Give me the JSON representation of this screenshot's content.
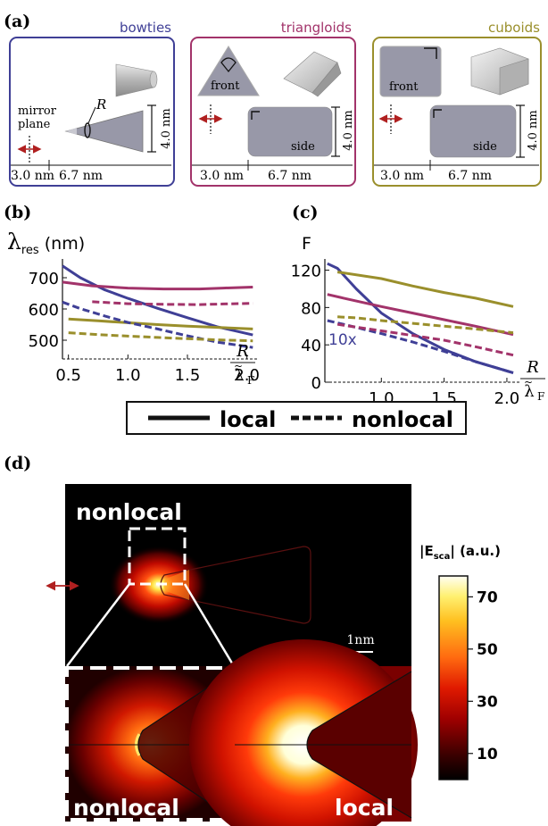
{
  "panel_labels": {
    "a": "(a)",
    "b": "(b)",
    "c": "(c)",
    "d": "(d)"
  },
  "panel_a": {
    "boxes": [
      {
        "title": "bowties",
        "color": "#3f3f96"
      },
      {
        "title": "triangloids",
        "color": "#a2336a"
      },
      {
        "title": "cuboids",
        "color": "#9a8f2c"
      }
    ],
    "mirror_label_line1": "mirror",
    "mirror_label_line2": "plane",
    "radius_label": "R",
    "front_label": "front",
    "side_label": "side",
    "height_label": "4.0 nm",
    "gap_label": "3.0 nm",
    "length_label": "6.7 nm"
  },
  "panel_b_ylabel_main": "λ",
  "panel_b_ylabel_sub": "res",
  "panel_b_ylabel_unit": " (nm)",
  "panel_c_ylabel": "F",
  "xlabel_num": "R",
  "xlabel_den": "λ",
  "xlabel_den_sub": "F",
  "annotation_10x": "10x",
  "legend": {
    "local": "local",
    "nonlocal": "nonlocal"
  },
  "panel_d": {
    "label_nonlocal_top": "nonlocal",
    "label_nonlocal_bottom": "nonlocal",
    "label_local": "local",
    "scalebar_label": "1nm",
    "colorbar_title_main": "|E",
    "colorbar_title_sub": "sca",
    "colorbar_title_end": "| (a.u.)",
    "colorbar_ticks": [
      {
        "value": 70,
        "label": "70"
      },
      {
        "value": 50,
        "label": "50"
      },
      {
        "value": 30,
        "label": "30"
      },
      {
        "value": 10,
        "label": "10"
      }
    ],
    "colorbar_range": [
      0,
      78
    ]
  },
  "chart_data": [
    {
      "type": "line",
      "xlim": [
        0.45,
        2.1
      ],
      "ylim": [
        440,
        760
      ],
      "xticks": [
        0.5,
        1.0,
        1.5,
        2.0
      ],
      "xtick_labels": [
        "0.5",
        "1.0",
        "1.5",
        "2.0"
      ],
      "yticks": [
        500,
        600,
        700
      ],
      "ytick_labels": [
        "500",
        "600",
        "700"
      ],
      "series": [
        {
          "shape": "bowties",
          "model": "local",
          "color": "#3f3f96",
          "dash": false,
          "x": [
            0.45,
            0.6,
            0.8,
            1.0,
            1.25,
            1.5,
            1.75,
            2.05
          ],
          "y": [
            738,
            700,
            662,
            634,
            602,
            572,
            543,
            517
          ]
        },
        {
          "shape": "triangloids",
          "model": "local",
          "color": "#a2336a",
          "dash": false,
          "x": [
            0.45,
            0.7,
            1.0,
            1.3,
            1.6,
            1.8,
            2.05
          ],
          "y": [
            686,
            674,
            667,
            664,
            664,
            667,
            670
          ]
        },
        {
          "shape": "cuboids",
          "model": "local",
          "color": "#9a8f2c",
          "dash": false,
          "x": [
            0.5,
            0.75,
            1.0,
            1.25,
            1.5,
            1.75,
            2.05
          ],
          "y": [
            568,
            562,
            556,
            550,
            545,
            541,
            536
          ]
        },
        {
          "shape": "bowties",
          "model": "nonlocal",
          "color": "#3f3f96",
          "dash": true,
          "x": [
            0.45,
            0.6,
            0.8,
            1.0,
            1.25,
            1.5,
            1.75,
            2.05
          ],
          "y": [
            622,
            601,
            578,
            557,
            536,
            514,
            494,
            477
          ]
        },
        {
          "shape": "triangloids",
          "model": "nonlocal",
          "color": "#a2336a",
          "dash": true,
          "x": [
            0.7,
            1.0,
            1.3,
            1.6,
            1.8,
            2.05
          ],
          "y": [
            623,
            617,
            615,
            614,
            616,
            618
          ]
        },
        {
          "shape": "cuboids",
          "model": "nonlocal",
          "color": "#9a8f2c",
          "dash": true,
          "x": [
            0.5,
            0.75,
            1.0,
            1.25,
            1.5,
            1.75,
            2.05
          ],
          "y": [
            524,
            518,
            513,
            509,
            505,
            501,
            498
          ]
        }
      ]
    },
    {
      "type": "line",
      "xlim": [
        0.55,
        2.1
      ],
      "ylim": [
        0,
        132
      ],
      "xticks": [
        1.0,
        1.5,
        2.0
      ],
      "xtick_labels": [
        "1.0",
        "1.5",
        "2.0"
      ],
      "yticks": [
        0,
        40,
        80,
        120
      ],
      "ytick_labels": [
        "0",
        "40",
        "80",
        "120"
      ],
      "series": [
        {
          "shape": "bowties",
          "model": "local",
          "color": "#3f3f96",
          "dash": false,
          "x": [
            0.57,
            0.65,
            0.8,
            1.0,
            1.25,
            1.5,
            1.75,
            2.05
          ],
          "y": [
            127,
            122,
            100,
            74,
            52,
            35,
            22,
            10
          ]
        },
        {
          "shape": "triangloids",
          "model": "local",
          "color": "#a2336a",
          "dash": false,
          "x": [
            0.57,
            0.7,
            1.0,
            1.25,
            1.5,
            1.75,
            2.05
          ],
          "y": [
            94,
            90,
            81,
            74,
            67,
            60,
            51
          ]
        },
        {
          "shape": "cuboids",
          "model": "local",
          "color": "#9a8f2c",
          "dash": false,
          "x": [
            0.65,
            1.0,
            1.25,
            1.5,
            1.75,
            2.05
          ],
          "y": [
            118,
            111,
            103,
            96,
            90,
            81
          ]
        },
        {
          "shape": "bowties",
          "model": "nonlocal",
          "color": "#3f3f96",
          "dash": true,
          "x": [
            0.57,
            0.7,
            0.85,
            1.0,
            1.25,
            1.5,
            1.75,
            2.05
          ],
          "y": [
            66,
            62,
            57,
            52,
            43,
            33,
            22,
            10
          ]
        },
        {
          "shape": "triangloids",
          "model": "nonlocal",
          "color": "#a2336a",
          "dash": true,
          "x": [
            0.65,
            0.85,
            1.0,
            1.25,
            1.5,
            1.75,
            2.05
          ],
          "y": [
            62,
            58,
            55,
            50,
            45,
            38,
            29
          ]
        },
        {
          "shape": "cuboids",
          "model": "nonlocal",
          "color": "#9a8f2c",
          "dash": true,
          "x": [
            0.65,
            0.8,
            1.0,
            1.25,
            1.5,
            1.75,
            2.05
          ],
          "y": [
            70,
            69,
            66,
            63,
            60,
            57,
            53
          ]
        }
      ]
    }
  ]
}
